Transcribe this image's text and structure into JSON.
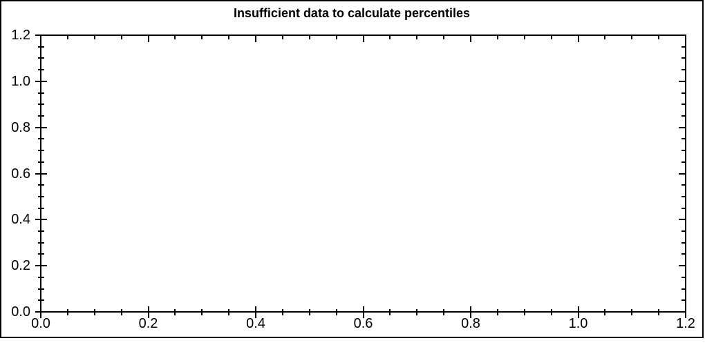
{
  "title": "Insufficient data to calculate percentiles",
  "colors": {
    "background": "#ffffff",
    "axis": "#000000",
    "text": "#000000",
    "outer_border": "#000000"
  },
  "chart_data": {
    "type": "scatter",
    "title": "Insufficient data to calculate percentiles",
    "series": [],
    "xlabel": "",
    "ylabel": "",
    "xlim": [
      0.0,
      1.2
    ],
    "ylim": [
      0.0,
      1.2
    ],
    "x_major_ticks": [
      0.0,
      0.2,
      0.4,
      0.6,
      0.8,
      1.0,
      1.2
    ],
    "y_major_ticks": [
      0.0,
      0.2,
      0.4,
      0.6,
      0.8,
      1.0,
      1.2
    ],
    "x_tick_labels": [
      "0.0",
      "0.2",
      "0.4",
      "0.6",
      "0.8",
      "1.0",
      "1.2"
    ],
    "y_tick_labels": [
      "0.0",
      "0.2",
      "0.4",
      "0.6",
      "0.8",
      "1.0",
      "1.2"
    ],
    "minor_tick_step": 0.05,
    "grid": false,
    "legend": null
  }
}
